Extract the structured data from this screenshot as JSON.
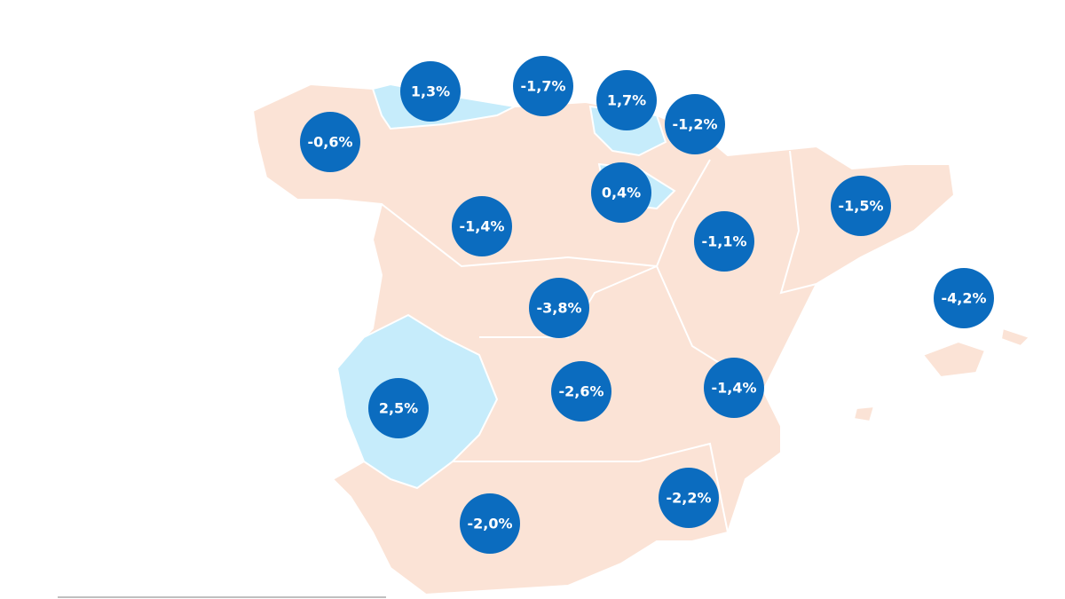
{
  "map": {
    "labels": [
      "-0,6%",
      "1,3%",
      "-1,7%",
      "1,7%",
      "-1,2%",
      "0,4%",
      "-1,4%",
      "-1,1%",
      "-1,5%",
      "-4,2%",
      "-3,8%",
      "2,5%",
      "-2,6%",
      "-1,4%",
      "-2,2%",
      "-2,0%"
    ]
  }
}
